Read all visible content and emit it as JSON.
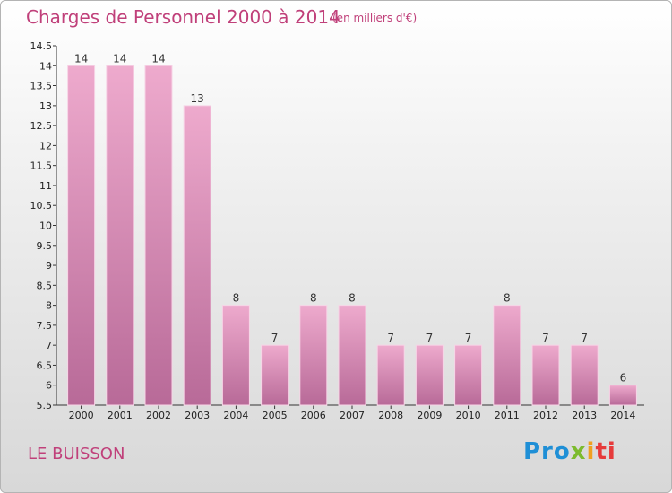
{
  "title": "Charges de Personnel 2000 à 2014",
  "subtitle": "(en milliers d'€)",
  "commune": "LE BUISSON",
  "logo": {
    "text": "Proxiti",
    "part1": "Pro",
    "part2": "x",
    "part3": "i",
    "part4": "ti"
  },
  "colors": {
    "bar": "#e7a3c4",
    "bar_dark": "#b86a98",
    "title": "#c0407a"
  },
  "chart_data": {
    "type": "bar",
    "categories": [
      "2000",
      "2001",
      "2002",
      "2003",
      "2004",
      "2005",
      "2006",
      "2007",
      "2008",
      "2009",
      "2010",
      "2011",
      "2012",
      "2013",
      "2014"
    ],
    "values": [
      14,
      14,
      14,
      13,
      8,
      7,
      8,
      8,
      7,
      7,
      7,
      8,
      7,
      7,
      6
    ],
    "data_labels": [
      "14",
      "14",
      "14",
      "13",
      "8",
      "7",
      "8",
      "8",
      "7",
      "7",
      "7",
      "8",
      "7",
      "7",
      "6"
    ],
    "y_ticks": [
      "5.5",
      "6",
      "6.5",
      "7",
      "7.5",
      "8",
      "8.5",
      "9",
      "9.5",
      "10",
      "10.5",
      "11",
      "11.5",
      "12",
      "12.5",
      "13",
      "13.5",
      "14",
      "14.5"
    ],
    "ylim": [
      5.5,
      14.5
    ],
    "grid": false
  }
}
